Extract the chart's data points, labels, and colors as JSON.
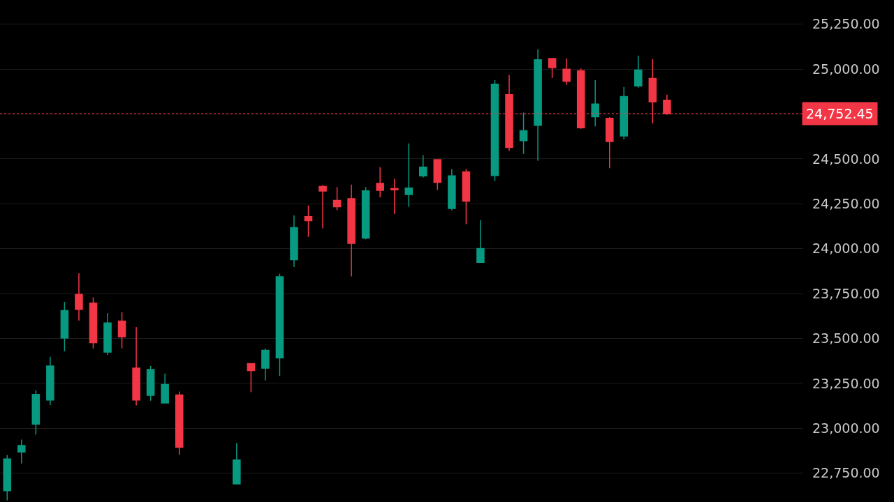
{
  "chart_data": {
    "type": "candlestick",
    "categories": [
      null,
      null,
      null,
      null,
      null,
      null,
      null,
      null,
      null,
      null,
      null,
      null,
      null,
      null,
      null,
      null,
      null,
      null,
      null,
      null,
      null,
      null,
      null,
      null,
      null,
      null,
      null,
      null,
      null,
      null,
      null,
      null,
      null,
      null,
      null,
      null,
      null,
      null,
      null,
      null,
      null,
      null,
      null,
      null,
      null,
      null,
      null,
      null,
      null,
      null,
      null,
      null,
      null,
      null,
      null,
      null
    ],
    "ohlc": [
      [
        22653,
        22851,
        22599,
        22830
      ],
      [
        22869,
        22937,
        22804,
        22904
      ],
      [
        23024,
        23212,
        22966,
        23189
      ],
      [
        23158,
        23398,
        23130,
        23347
      ],
      [
        23503,
        23704,
        23429,
        23656
      ],
      [
        23746,
        23863,
        23600,
        23662
      ],
      [
        23697,
        23729,
        23445,
        23477
      ],
      [
        23425,
        23642,
        23409,
        23587
      ],
      [
        23597,
        23646,
        23445,
        23510
      ],
      [
        23335,
        23564,
        23128,
        23158
      ],
      [
        23184,
        23347,
        23154,
        23328
      ],
      [
        23141,
        23305,
        23141,
        23244
      ],
      [
        23186,
        23205,
        22852,
        22895
      ],
      null,
      null,
      null,
      [
        22691,
        22918,
        22691,
        22824
      ],
      [
        23361,
        23361,
        23201,
        23322
      ],
      [
        23335,
        23445,
        23266,
        23434
      ],
      [
        23393,
        23861,
        23292,
        23844
      ],
      [
        23939,
        24185,
        23898,
        24118
      ],
      [
        24179,
        24241,
        24066,
        24156
      ],
      [
        24347,
        24354,
        24114,
        24321
      ],
      [
        24269,
        24344,
        24215,
        24234
      ],
      [
        24279,
        24357,
        23846,
        24030
      ],
      [
        24059,
        24344,
        24053,
        24322
      ],
      [
        24364,
        24454,
        24286,
        24325
      ],
      [
        24335,
        24389,
        24193,
        24328
      ],
      [
        24302,
        24586,
        24234,
        24338
      ],
      [
        24406,
        24521,
        24396,
        24454
      ],
      [
        24496,
        24496,
        24327,
        24370
      ],
      [
        24224,
        24444,
        24215,
        24406
      ],
      [
        24428,
        24444,
        24137,
        24265
      ],
      [
        23924,
        24159,
        23924,
        24001
      ],
      [
        24408,
        24939,
        24377,
        24916
      ],
      [
        24858,
        24968,
        24545,
        24564
      ],
      [
        24602,
        24758,
        24528,
        24657
      ],
      [
        24687,
        25110,
        24490,
        25052
      ],
      [
        25059,
        25059,
        24950,
        25008
      ],
      [
        25000,
        25060,
        24912,
        24933
      ],
      [
        24991,
        25004,
        24668,
        24674
      ],
      [
        24735,
        24939,
        24681,
        24806
      ],
      [
        24726,
        24733,
        24448,
        24597
      ],
      [
        24628,
        24901,
        24609,
        24847
      ],
      [
        24907,
        25075,
        24897,
        24995
      ],
      [
        24948,
        25056,
        24698,
        24818
      ],
      [
        24827,
        24858,
        24745,
        24752.45
      ],
      null,
      null,
      null,
      null,
      null,
      null,
      null,
      null,
      null
    ],
    "colors": [
      "#089981",
      "#089981",
      "#089981",
      "#089981",
      "#089981",
      "#f23645",
      "#f23645",
      "#089981",
      "#f23645",
      "#f23645",
      "#089981",
      "#089981",
      "#f23645",
      null,
      null,
      null,
      "#089981",
      "#f23645",
      "#089981",
      "#089981",
      "#089981",
      "#f23645",
      "#f23645",
      "#f23645",
      "#f23645",
      "#089981",
      "#f23645",
      "#f23645",
      "#089981",
      "#089981",
      "#f23645",
      "#089981",
      "#f23645",
      "#089981",
      "#089981",
      "#f23645",
      "#089981",
      "#089981",
      "#f23645",
      "#f23645",
      "#f23645",
      "#089981",
      "#f23645",
      "#089981",
      "#089981",
      "#f23645",
      "#f23645",
      null,
      null,
      null,
      null,
      null,
      null,
      null,
      null,
      null
    ],
    "ylim": [
      22590,
      25385
    ],
    "yticks": [
      {
        "value": 22750,
        "label": "22,750.00"
      },
      {
        "value": 23000,
        "label": "23,000.00"
      },
      {
        "value": 23250,
        "label": "23,250.00"
      },
      {
        "value": 23500,
        "label": "23,500.00"
      },
      {
        "value": 23750,
        "label": "23,750.00"
      },
      {
        "value": 24000,
        "label": "24,000.00"
      },
      {
        "value": 24250,
        "label": "24,250.00"
      },
      {
        "value": 24500,
        "label": "24,500.00"
      },
      {
        "value": 24750,
        "label": null
      },
      {
        "value": 25000,
        "label": "25,000.00"
      },
      {
        "value": 25250,
        "label": "25,250.00"
      }
    ],
    "ref_lines": [
      {
        "axis": "y",
        "value": 24752.45,
        "label": "24,752.45",
        "color": "#f23645",
        "line_style": "dotted"
      }
    ],
    "grid": "y",
    "tick_labels": "y",
    "legend": false
  }
}
